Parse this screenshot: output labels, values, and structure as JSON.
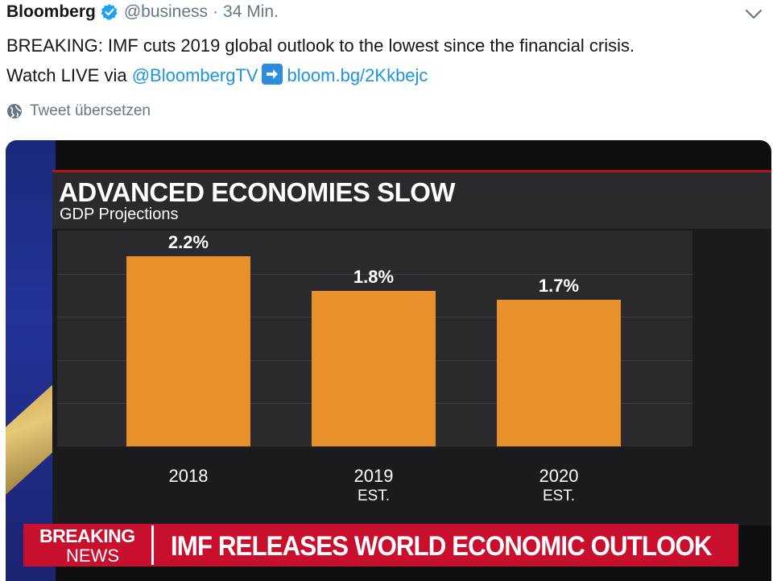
{
  "tweet": {
    "name": "Bloomberg",
    "handle": "@business",
    "separator": "·",
    "time": "34 Min.",
    "line1": "BREAKING: IMF cuts 2019 global outlook to the lowest since the financial crisis.",
    "line2_prefix": "Watch LIVE via",
    "mention": "@BloombergTV",
    "url": "bloom.bg/2Kkbejc",
    "translate_label": "Tweet übersetzen"
  },
  "media": {
    "title": "ADVANCED ECONOMIES SLOW",
    "subtitle": "GDP Projections",
    "breaking_line1": "BREAKING",
    "breaking_line2": "NEWS",
    "ticker": "IMF RELEASES WORLD ECONOMIC OUTLOOK"
  },
  "chart_data": {
    "type": "bar",
    "title": "ADVANCED ECONOMIES SLOW",
    "subtitle": "GDP Projections",
    "categories": [
      "2018",
      "2019",
      "2020"
    ],
    "category_notes": [
      "",
      "EST.",
      "EST."
    ],
    "values": [
      2.2,
      1.8,
      1.7
    ],
    "value_labels": [
      "2.2%",
      "1.8%",
      "1.7%"
    ],
    "ylim": [
      0,
      2.5
    ],
    "grid": true,
    "bar_color": "#e8902b"
  },
  "colors": {
    "link": "#1b95e0",
    "verified": "#1da1f2",
    "ticker_red": "#c8102e"
  }
}
